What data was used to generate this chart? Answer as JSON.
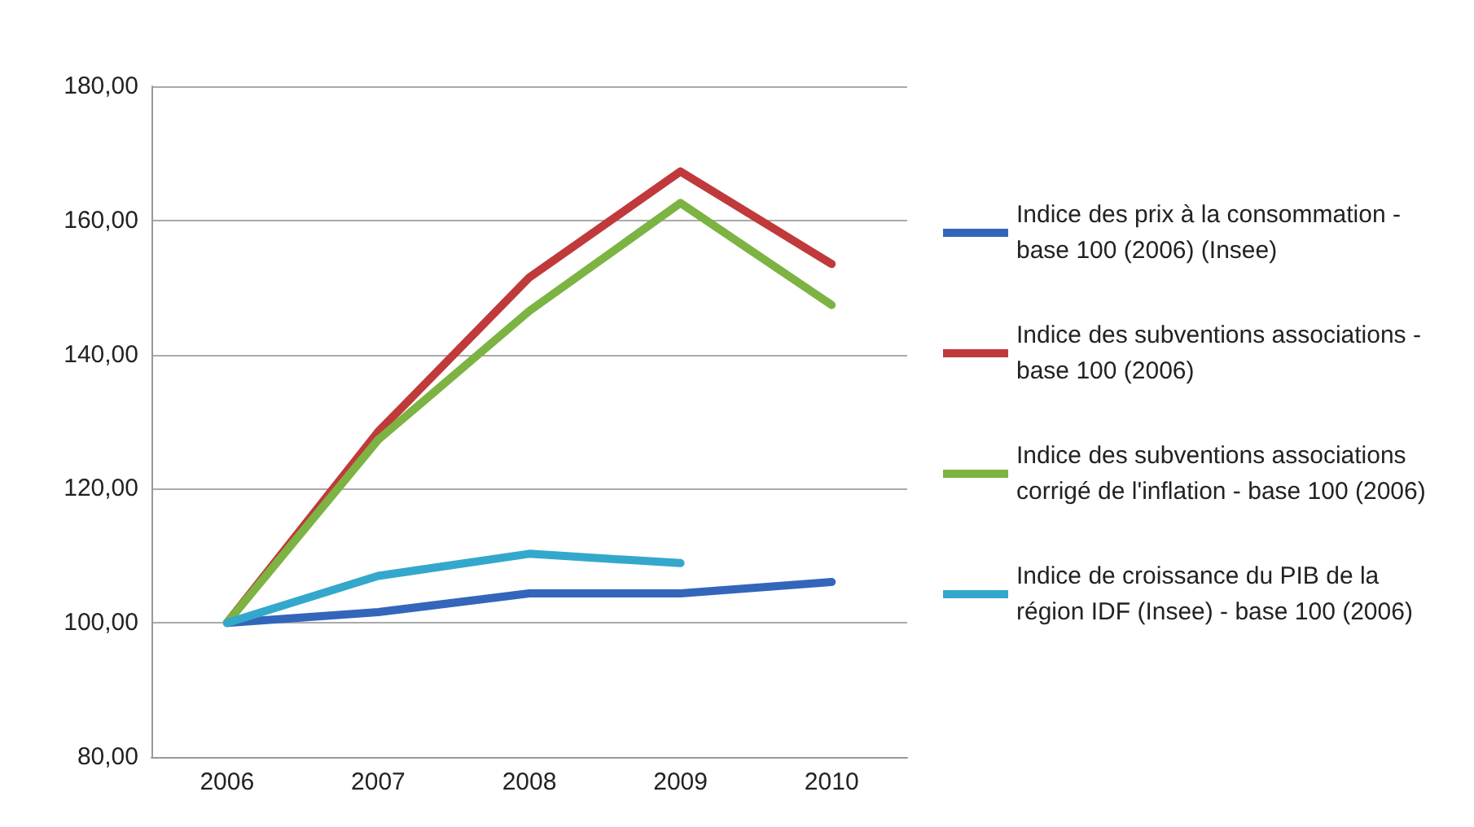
{
  "chart_data": {
    "type": "line",
    "categories": [
      "2006",
      "2007",
      "2008",
      "2009",
      "2010"
    ],
    "series": [
      {
        "name": "Indice des prix à la consommation - base 100 (2006) (Insee)",
        "color": "#3366bb",
        "values": [
          100,
          101.6,
          104.4,
          104.4,
          106.1
        ]
      },
      {
        "name": "Indice des subventions associations - base 100 (2006)",
        "color": "#c0393b",
        "values": [
          100,
          128.5,
          151.5,
          167.3,
          153.5
        ]
      },
      {
        "name": "Indice des subventions associations corrigé de l'inflation - base 100 (2006)",
        "color": "#7cb342",
        "values": [
          100,
          127.3,
          146.5,
          162.6,
          147.4
        ]
      },
      {
        "name": "Indice de croissance du PIB de la région IDF (Insee) - base 100 (2006)",
        "color": "#33a8cc",
        "values": [
          100,
          107,
          110.3,
          108.9,
          null
        ]
      }
    ],
    "ylim": [
      80,
      180
    ],
    "yticks": [
      {
        "value": 80,
        "label": "80,00"
      },
      {
        "value": 100,
        "label": "100,00"
      },
      {
        "value": 120,
        "label": "120,00"
      },
      {
        "value": 140,
        "label": "140,00"
      },
      {
        "value": 160,
        "label": "160,00"
      },
      {
        "value": 180,
        "label": "180,00"
      }
    ],
    "grid": "y",
    "legend": "right",
    "marker": "none",
    "line_style": "solid"
  }
}
